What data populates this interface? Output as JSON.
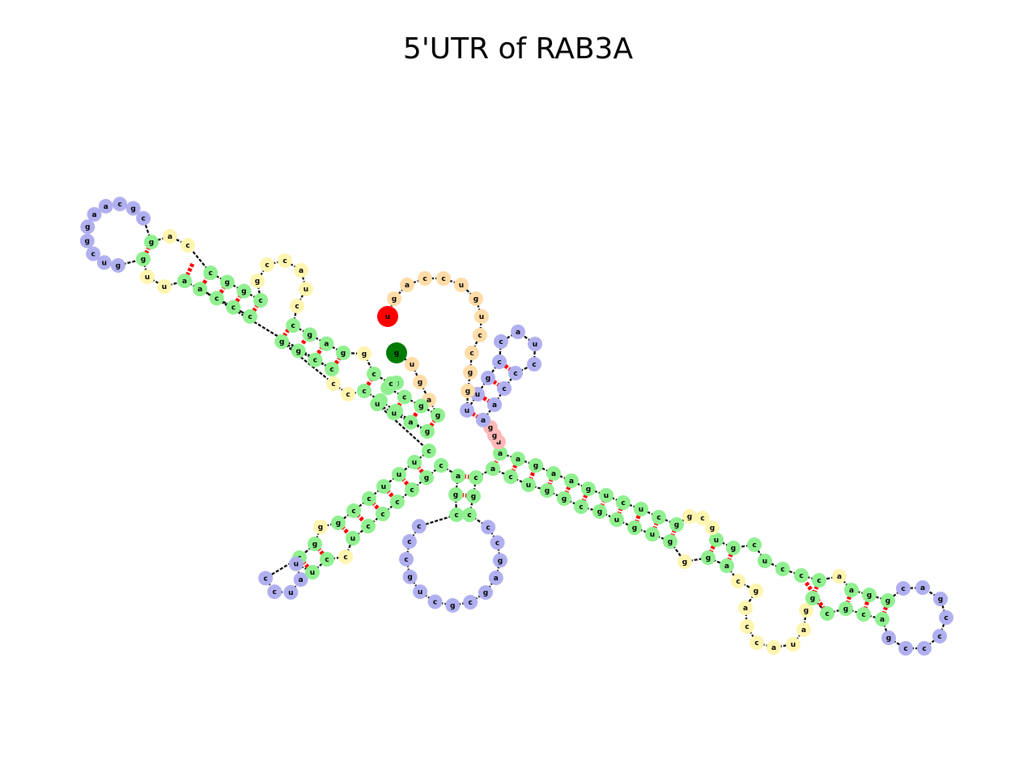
{
  "title": "5'UTR of RAB3A",
  "colors": {
    "stem": "#90f090",
    "hairpin": "#b0b0f0",
    "interior": "#fff5b0",
    "exterior": "#ffdca8",
    "multiloop": "#ffb8b8",
    "pair": "#ff0000",
    "backbone": "#000000",
    "three_prime": "#ff0000",
    "five_prime": "#007a00"
  },
  "bases": [
    "g",
    "u",
    "g",
    "a",
    "g",
    "g",
    "c",
    "c",
    "g",
    "c",
    "c",
    "g",
    "g",
    "a",
    "g",
    "c",
    "c",
    "u",
    "a",
    "c",
    "c",
    "g",
    "c",
    "g",
    "g",
    "c",
    "c",
    "a",
    "g",
    "c",
    "g",
    "c",
    "a",
    "a",
    "g",
    "g",
    "c",
    "u",
    "g",
    "g",
    "u",
    "u",
    "a",
    "c",
    "c",
    "c",
    "a",
    "c",
    "c",
    "g",
    "g",
    "c",
    "c",
    "c",
    "g",
    "g",
    "g",
    "a",
    "u",
    "u",
    "c",
    "u",
    "u",
    "u",
    "c",
    "c",
    "g",
    "g",
    "g",
    "c",
    "c",
    "c",
    "u",
    "a",
    "u",
    "u",
    "c",
    "c",
    "u",
    "c",
    "c",
    "c",
    "c",
    "g",
    "c",
    "a",
    "g",
    "c",
    "c",
    "c",
    "c",
    "g",
    "u",
    "c",
    "g",
    "c",
    "g",
    "a",
    "g",
    "c",
    "c",
    "c",
    "g",
    "c",
    "a",
    "c",
    "u",
    "g",
    "g",
    "c",
    "g",
    "u",
    "g",
    "u",
    "g",
    "g",
    "g",
    "a",
    "c",
    "g",
    "a",
    "c",
    "c",
    "a",
    "u",
    "a",
    "g",
    "g",
    "c",
    "g",
    "c",
    "a",
    "g",
    "c",
    "c",
    "c",
    "c",
    "g",
    "a",
    "c",
    "g",
    "g",
    "a",
    "a",
    "c",
    "c",
    "c",
    "u",
    "c",
    "g",
    "u",
    "g",
    "c",
    "g",
    "g",
    "c",
    "u",
    "c",
    "u",
    "g",
    "a",
    "a",
    "g",
    "a",
    "a",
    "u",
    "g",
    "g",
    "a",
    "a",
    "c",
    "c",
    "c",
    "u",
    "a",
    "c",
    "c",
    "g",
    "u",
    "u",
    "g",
    "g",
    "c",
    "c",
    "u",
    "g",
    "u",
    "c",
    "c",
    "a",
    "g",
    "c",
    "u",
    "g",
    "u",
    "c",
    "c",
    "c",
    "g",
    "a",
    "c",
    "g",
    "g",
    "g",
    "g",
    "a",
    "c",
    "c",
    "a",
    "g",
    "u",
    "c",
    "u",
    "u",
    "u",
    "c",
    "g",
    "g",
    "c",
    "g",
    "u",
    "c",
    "a",
    "g",
    "g",
    "c",
    "a",
    "g",
    "c",
    "c",
    "u",
    "c",
    "g",
    "a",
    "g",
    "c",
    "u",
    "g",
    "a",
    "u",
    "g",
    "g",
    "g",
    "c",
    "a",
    "g",
    "a",
    "c",
    "u",
    "u",
    "u",
    "u",
    "a",
    "c",
    "a",
    "c",
    "g",
    "a",
    "g",
    "g",
    "g",
    "c",
    "u"
  ],
  "five_prime_base": "g",
  "three_prime_base": "u"
}
